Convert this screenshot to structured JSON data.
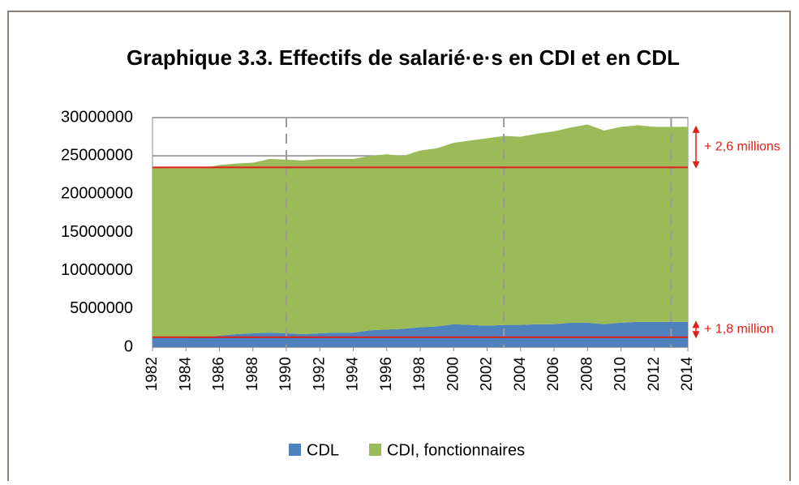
{
  "chart_data": {
    "type": "stacked_area",
    "title": "Graphique 3.3. Effectifs de salarié·e·s en CDI et en CDL",
    "x": [
      1982,
      1983,
      1984,
      1985,
      1986,
      1987,
      1988,
      1989,
      1990,
      1991,
      1992,
      1993,
      1994,
      1995,
      1996,
      1997,
      1998,
      1999,
      2000,
      2001,
      2002,
      2003,
      2004,
      2005,
      2006,
      2007,
      2008,
      2009,
      2010,
      2011,
      2012,
      2013,
      2014
    ],
    "xlim": [
      1982,
      2014
    ],
    "xticks": [
      1982,
      1984,
      1986,
      1988,
      1990,
      1992,
      1994,
      1996,
      1998,
      2000,
      2002,
      2004,
      2006,
      2008,
      2010,
      2012,
      2014
    ],
    "ylim": [
      0,
      30000000
    ],
    "yticks": [
      0,
      5000000,
      10000000,
      15000000,
      20000000,
      25000000,
      30000000
    ],
    "grid": true,
    "series": [
      {
        "name": "CDL",
        "color": "#4f81bd",
        "values": [
          1200000,
          1200000,
          1200000,
          1300000,
          1500000,
          1700000,
          1800000,
          1900000,
          1800000,
          1700000,
          1800000,
          1900000,
          1900000,
          2200000,
          2300000,
          2400000,
          2600000,
          2700000,
          3000000,
          2900000,
          2800000,
          2900000,
          2900000,
          3000000,
          3000000,
          3200000,
          3200000,
          3000000,
          3200000,
          3300000,
          3300000,
          3300000,
          3300000
        ]
      },
      {
        "name": "CDI, fonctionnaires",
        "color": "#9bbb59",
        "values": [
          22300000,
          22200000,
          22200000,
          22100000,
          22300000,
          22300000,
          22300000,
          22700000,
          22700000,
          22700000,
          22800000,
          22700000,
          22700000,
          22800000,
          22900000,
          22600000,
          23100000,
          23300000,
          23700000,
          24100000,
          24500000,
          24700000,
          24600000,
          24900000,
          25200000,
          25500000,
          25900000,
          25300000,
          25600000,
          25700000,
          25500000,
          25500000,
          25500000
        ]
      }
    ],
    "reference_lines": {
      "color": "#e0201b",
      "values": [
        23500000,
        1300000
      ]
    },
    "vertical_lines": [
      1990,
      2003,
      2013
    ],
    "annotations": [
      "+ 2,6 millions",
      "+ 1,8 million"
    ]
  }
}
